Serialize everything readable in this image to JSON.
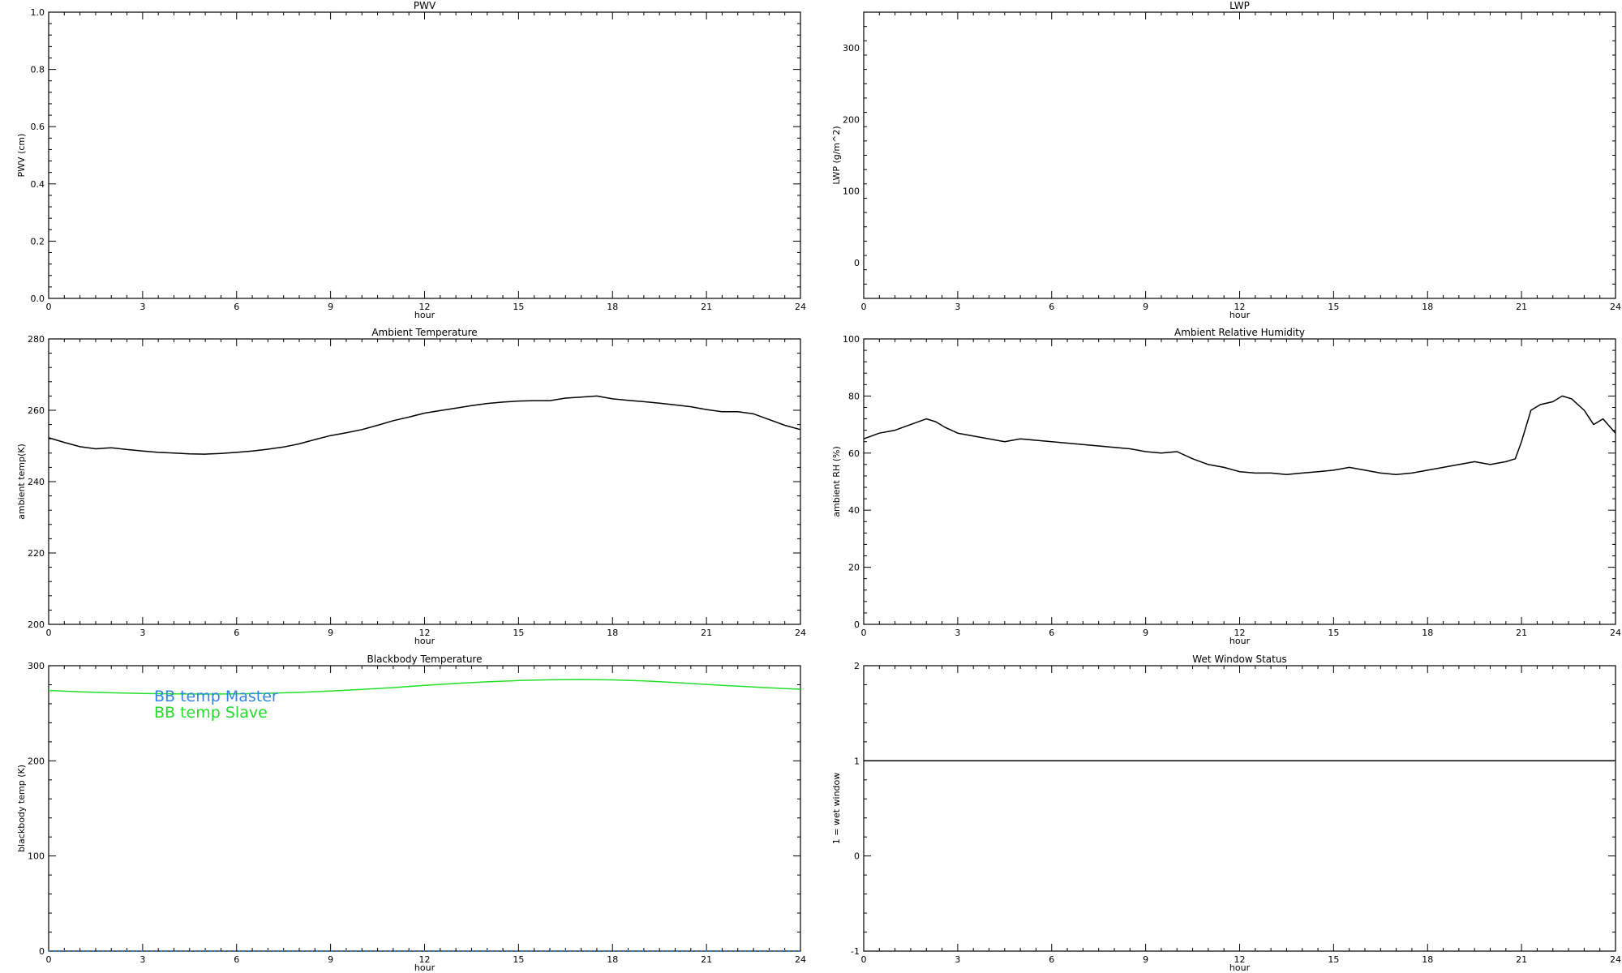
{
  "chart_data": [
    {
      "type": "line",
      "title": "PWV",
      "xlabel": "hour",
      "ylabel": "PWV (cm)",
      "xlim": [
        0,
        24
      ],
      "ylim": [
        0,
        1
      ],
      "xticks": [
        0,
        3,
        6,
        9,
        12,
        15,
        18,
        21,
        24
      ],
      "xtick_labels": [
        "0",
        "3",
        "6",
        "9",
        "12",
        "15",
        "18",
        "21",
        "24"
      ],
      "yticks": [
        0,
        0.2,
        0.4,
        0.6,
        0.8,
        1.0
      ],
      "ytick_labels": [
        "0.0",
        "0.2",
        "0.4",
        "0.6",
        "0.8",
        "1.0"
      ],
      "minor_y": 0.04,
      "grid": false,
      "series": []
    },
    {
      "type": "line",
      "title": "LWP",
      "xlabel": "hour",
      "ylabel": "LWP (g/m^2)",
      "xlim": [
        0,
        24
      ],
      "ylim": [
        -50,
        350
      ],
      "xticks": [
        0,
        3,
        6,
        9,
        12,
        15,
        18,
        21,
        24
      ],
      "xtick_labels": [
        "0",
        "3",
        "6",
        "9",
        "12",
        "15",
        "18",
        "21",
        "24"
      ],
      "yticks": [
        0,
        100,
        200,
        300
      ],
      "ytick_labels": [
        "0",
        "100",
        "200",
        "300"
      ],
      "minor_y": 20,
      "grid": false,
      "series": []
    },
    {
      "type": "line",
      "title": "Ambient Temperature",
      "xlabel": "hour",
      "ylabel": "ambient temp(K)",
      "xlim": [
        0,
        24
      ],
      "ylim": [
        200,
        280
      ],
      "xticks": [
        0,
        3,
        6,
        9,
        12,
        15,
        18,
        21,
        24
      ],
      "xtick_labels": [
        "0",
        "3",
        "6",
        "9",
        "12",
        "15",
        "18",
        "21",
        "24"
      ],
      "yticks": [
        200,
        220,
        240,
        260,
        280
      ],
      "ytick_labels": [
        "200",
        "220",
        "240",
        "260",
        "280"
      ],
      "minor_y": 4,
      "grid": false,
      "series": [
        {
          "color": "#000000",
          "x": [
            0,
            0.5,
            1,
            1.5,
            2,
            2.5,
            3,
            3.5,
            4,
            4.5,
            5,
            5.5,
            6,
            6.5,
            7,
            7.5,
            8,
            8.5,
            9,
            9.5,
            10,
            10.5,
            11,
            11.5,
            12,
            12.5,
            13,
            13.5,
            14,
            14.5,
            15,
            15.5,
            16,
            16.5,
            17,
            17.5,
            18,
            18.5,
            19,
            19.5,
            20,
            20.5,
            21,
            21.5,
            22,
            22.5,
            23,
            23.5,
            24
          ],
          "y": [
            252.3,
            251.0,
            249.8,
            249.2,
            249.5,
            249.0,
            248.6,
            248.2,
            248.0,
            247.8,
            247.7,
            247.9,
            248.2,
            248.6,
            249.1,
            249.7,
            250.6,
            251.8,
            252.9,
            253.7,
            254.6,
            255.8,
            257.1,
            258.1,
            259.2,
            259.9,
            260.6,
            261.3,
            261.9,
            262.3,
            262.6,
            262.7,
            262.7,
            263.4,
            263.7,
            264.0,
            263.2,
            262.8,
            262.4,
            262.0,
            261.5,
            261.0,
            260.2,
            259.6,
            259.6,
            259.0,
            257.4,
            255.8,
            254.6
          ]
        }
      ]
    },
    {
      "type": "line",
      "title": "Ambient Relative Humidity",
      "xlabel": "hour",
      "ylabel": "ambient RH (%)",
      "xlim": [
        0,
        24
      ],
      "ylim": [
        0,
        100
      ],
      "xticks": [
        0,
        3,
        6,
        9,
        12,
        15,
        18,
        21,
        24
      ],
      "xtick_labels": [
        "0",
        "3",
        "6",
        "9",
        "12",
        "15",
        "18",
        "21",
        "24"
      ],
      "yticks": [
        0,
        20,
        40,
        60,
        80,
        100
      ],
      "ytick_labels": [
        "0",
        "20",
        "40",
        "60",
        "80",
        "100"
      ],
      "minor_y": 4,
      "grid": false,
      "series": [
        {
          "color": "#000000",
          "x": [
            0,
            0.5,
            1,
            1.5,
            2,
            2.3,
            2.6,
            3,
            3.5,
            4,
            4.5,
            5,
            5.5,
            6,
            6.5,
            7,
            7.5,
            8,
            8.5,
            9,
            9.5,
            10,
            10.5,
            11,
            11.5,
            12,
            12.5,
            13,
            13.5,
            14,
            14.5,
            15,
            15.5,
            16,
            16.5,
            17,
            17.5,
            18,
            18.5,
            19,
            19.5,
            20,
            20.5,
            20.8,
            21,
            21.3,
            21.6,
            22,
            22.3,
            22.6,
            23,
            23.3,
            23.6,
            24
          ],
          "y": [
            65,
            67,
            68,
            70,
            72,
            71,
            69,
            67,
            66,
            65,
            64,
            65,
            64.5,
            64,
            63.5,
            63,
            62.5,
            62,
            61.5,
            60.5,
            60,
            60.5,
            58,
            56,
            55,
            53.5,
            53,
            53,
            52.5,
            53,
            53.5,
            54,
            55,
            54,
            53,
            52.5,
            53,
            54,
            55,
            56,
            57,
            56,
            57,
            58,
            64,
            75,
            77,
            78,
            80,
            79,
            75,
            70,
            72,
            67
          ]
        }
      ]
    },
    {
      "type": "line",
      "title": "Blackbody Temperature",
      "xlabel": "hour",
      "ylabel": "blackbody temp (K)",
      "xlim": [
        0,
        24
      ],
      "ylim": [
        0,
        300
      ],
      "xticks": [
        0,
        3,
        6,
        9,
        12,
        15,
        18,
        21,
        24
      ],
      "xtick_labels": [
        "0",
        "3",
        "6",
        "9",
        "12",
        "15",
        "18",
        "21",
        "24"
      ],
      "yticks": [
        0,
        100,
        200,
        300
      ],
      "ytick_labels": [
        "0",
        "100",
        "200",
        "300"
      ],
      "minor_y": 20,
      "grid": false,
      "legend": {
        "placement": "top-left",
        "entries": [
          {
            "label": "BB temp Master",
            "color": "#2f86e6"
          },
          {
            "label": "BB temp Slave",
            "color": "#22e02a"
          }
        ]
      },
      "series": [
        {
          "name": "BB temp Master",
          "color": "#2f86e6",
          "style": "dotted",
          "x": [
            0,
            24
          ],
          "y": [
            0,
            0
          ]
        },
        {
          "name": "BB temp Slave",
          "color": "#22e02a",
          "x": [
            0,
            1,
            2,
            3,
            4,
            5,
            6,
            7,
            8,
            9,
            10,
            11,
            12,
            13,
            14,
            15,
            16,
            17,
            18,
            19,
            20,
            21,
            22,
            23,
            24
          ],
          "y": [
            274,
            272.5,
            271.5,
            270.8,
            270.3,
            270.2,
            270.4,
            271,
            272,
            273.4,
            275,
            277,
            279.3,
            281.3,
            283,
            284.4,
            285.2,
            285.5,
            285.1,
            284,
            282.3,
            280.3,
            278.5,
            276.8,
            275.2
          ]
        }
      ]
    },
    {
      "type": "line",
      "title": "Wet Window Status",
      "xlabel": "hour",
      "ylabel": "1 = wet window",
      "xlim": [
        0,
        24
      ],
      "ylim": [
        -1,
        2
      ],
      "xticks": [
        0,
        3,
        6,
        9,
        12,
        15,
        18,
        21,
        24
      ],
      "xtick_labels": [
        "0",
        "3",
        "6",
        "9",
        "12",
        "15",
        "18",
        "21",
        "24"
      ],
      "yticks": [
        -1,
        0,
        1,
        2
      ],
      "ytick_labels": [
        "-1",
        "0",
        "1",
        "2"
      ],
      "minor_y": 0.2,
      "grid": false,
      "series": [
        {
          "color": "#000000",
          "x": [
            0,
            24
          ],
          "y": [
            1,
            1
          ]
        }
      ]
    }
  ]
}
